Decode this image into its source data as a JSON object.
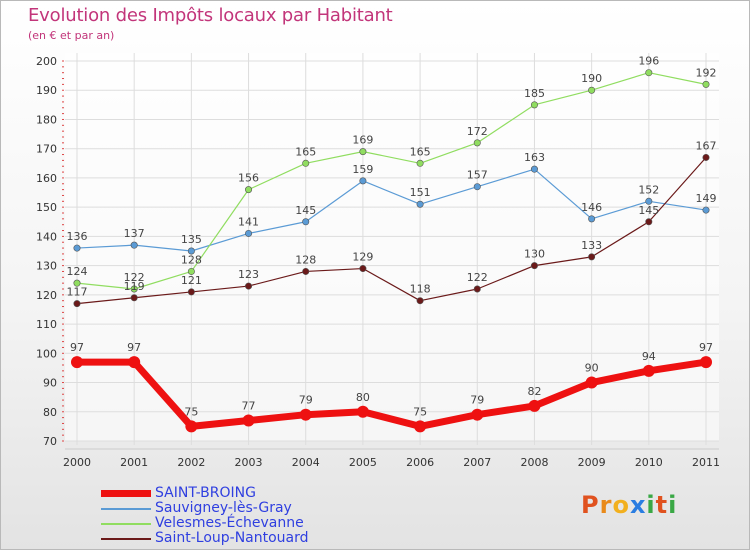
{
  "title": "Evolution des Impôts locaux par Habitant",
  "subtitle": "(en € et par an)",
  "logo": {
    "text": "Proxiti",
    "letters": [
      "P",
      "r",
      "o",
      "x",
      "i",
      "t",
      "i"
    ],
    "colors": [
      "#e0521f",
      "#e98a1a",
      "#f2b01e",
      "#2a7de1",
      "#3aa845",
      "#e0521f",
      "#3aa845"
    ]
  },
  "chart_data": {
    "type": "line",
    "title": "Evolution des Impôts locaux par Habitant",
    "ylabel": "(en € et par an)",
    "xlabel": "",
    "x": [
      "2000",
      "2001",
      "2002",
      "2003",
      "2004",
      "2005",
      "2006",
      "2007",
      "2008",
      "2009",
      "2010",
      "2011"
    ],
    "ylim": [
      70,
      200
    ],
    "yticks": [
      70,
      80,
      90,
      100,
      110,
      120,
      130,
      140,
      150,
      160,
      170,
      180,
      190,
      200
    ],
    "grid": true,
    "legend_position": "bottom-left",
    "series": [
      {
        "name": "SAINT-BROING",
        "color": "#ee1111",
        "bold": true,
        "values": [
          97,
          97,
          75,
          77,
          79,
          80,
          75,
          79,
          82,
          90,
          94,
          97
        ]
      },
      {
        "name": "Sauvigney-lès-Gray",
        "color": "#5b9bd5",
        "bold": false,
        "values": [
          136,
          137,
          135,
          141,
          145,
          159,
          151,
          157,
          163,
          146,
          152,
          149
        ]
      },
      {
        "name": "Velesmes-Échevanne",
        "color": "#90dd60",
        "bold": false,
        "values": [
          124,
          122,
          128,
          156,
          165,
          169,
          165,
          172,
          185,
          190,
          196,
          192
        ]
      },
      {
        "name": "Saint-Loup-Nantouard",
        "color": "#6b1a1a",
        "bold": false,
        "values": [
          117,
          119,
          121,
          123,
          128,
          129,
          118,
          122,
          130,
          133,
          145,
          167
        ]
      }
    ]
  }
}
